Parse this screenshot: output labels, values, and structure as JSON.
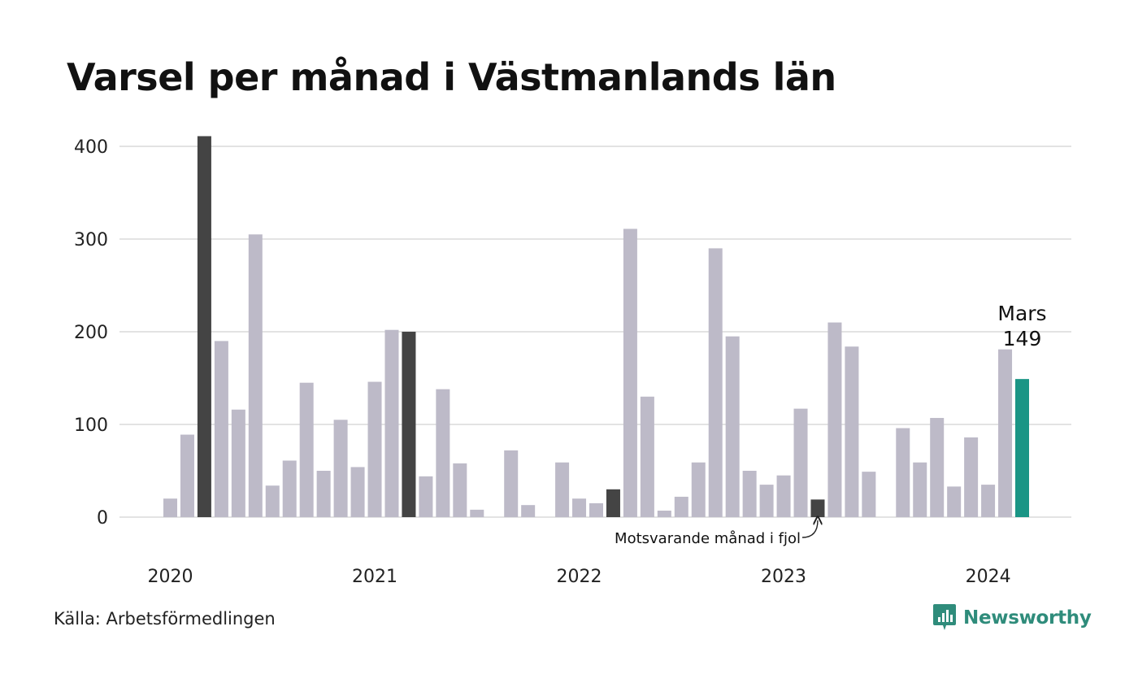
{
  "title": "Varsel per månad i Västmanlands län",
  "source": "Källa: Arbetsförmedlingen",
  "brand": {
    "name": "Newsworthy",
    "icon": "newsworthy-logo-icon",
    "color": "#2f8c7b"
  },
  "colors": {
    "bar_default": "#bdbac8",
    "bar_same_month": "#444444",
    "bar_current": "#1a9585",
    "grid": "#e3e3e3",
    "text": "#111111"
  },
  "chart_data": {
    "type": "bar",
    "ylim": [
      0,
      400
    ],
    "yticks": [
      "0",
      "100",
      "200",
      "300",
      "400"
    ],
    "xticks": [
      "2020",
      "2021",
      "2022",
      "2023",
      "2024"
    ],
    "xtick_month_index": [
      0,
      12,
      24,
      36,
      48
    ],
    "grid": true,
    "start_label": "2020-01",
    "months": [
      "2020-01",
      "2020-02",
      "2020-03",
      "2020-04",
      "2020-05",
      "2020-06",
      "2020-07",
      "2020-08",
      "2020-09",
      "2020-10",
      "2020-11",
      "2020-12",
      "2021-01",
      "2021-02",
      "2021-03",
      "2021-04",
      "2021-05",
      "2021-06",
      "2021-07",
      "2021-08",
      "2021-09",
      "2021-10",
      "2021-11",
      "2021-12",
      "2022-01",
      "2022-02",
      "2022-03",
      "2022-04",
      "2022-05",
      "2022-06",
      "2022-07",
      "2022-08",
      "2022-09",
      "2022-10",
      "2022-11",
      "2022-12",
      "2023-01",
      "2023-02",
      "2023-03",
      "2023-04",
      "2023-05",
      "2023-06",
      "2023-07",
      "2023-08",
      "2023-09",
      "2023-10",
      "2023-11",
      "2023-12",
      "2024-01",
      "2024-02",
      "2024-03"
    ],
    "values": [
      20,
      89,
      411,
      190,
      116,
      305,
      34,
      61,
      145,
      50,
      105,
      54,
      146,
      202,
      200,
      44,
      138,
      58,
      8,
      0,
      72,
      13,
      0,
      59,
      20,
      15,
      30,
      311,
      130,
      7,
      22,
      59,
      290,
      195,
      50,
      35,
      45,
      117,
      19,
      210,
      184,
      49,
      0,
      96,
      59,
      107,
      33,
      86,
      35,
      181,
      149
    ],
    "highlight_same_month": [
      "2020-03",
      "2021-03",
      "2022-03",
      "2023-03"
    ],
    "highlight_current": "2024-03",
    "current_label": {
      "month": "Mars",
      "value": "149"
    },
    "annotation": {
      "text": "Motsvarande månad i fjol",
      "target": "2023-03"
    }
  }
}
